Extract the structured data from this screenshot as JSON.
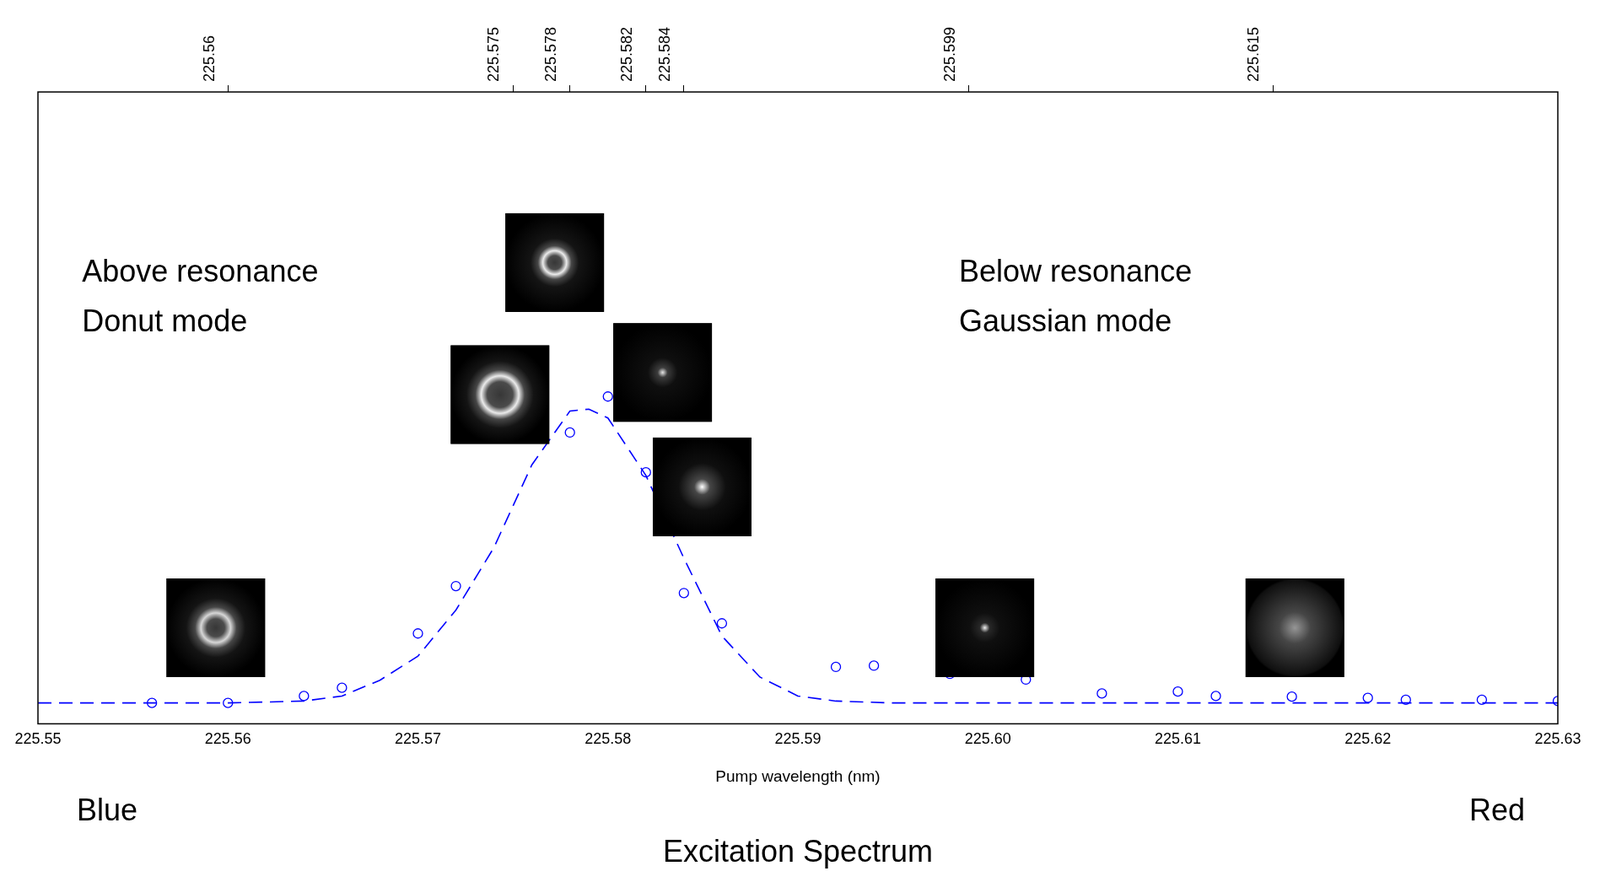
{
  "chart_data": {
    "type": "scatter",
    "title": "Excitation Spectrum",
    "x_label": "Pump wavelength (nm)",
    "annotations": [
      "Above resonance\nDonut mode",
      "Below resonance\nGaussian mode",
      "Blue",
      "Red"
    ],
    "xlim": [
      225.55,
      225.63
    ],
    "xticks": [
      225.55,
      225.56,
      225.57,
      225.58,
      225.59,
      {
        "value": 225.6,
        "label": "225.60"
      },
      225.61,
      225.62,
      225.63
    ],
    "x2lim": [
      225.55,
      225.63
    ],
    "x2ticks": [
      225.56,
      225.575,
      225.578,
      225.582,
      225.584,
      225.599,
      225.615
    ],
    "ylim": [
      0,
      1
    ],
    "tick_labels": "x",
    "grid": false,
    "series": [
      {
        "type": "scatter",
        "marker": "circle",
        "color": "#0000ff",
        "x": [
          225.556,
          225.56,
          225.564,
          225.566,
          225.57,
          225.572,
          225.578,
          225.58,
          225.582,
          225.584,
          225.586,
          225.592,
          225.594,
          225.598,
          225.602,
          225.606,
          225.61,
          225.612,
          225.616,
          225.62,
          225.622,
          225.626,
          225.63
        ],
        "values": [
          0.033,
          0.033,
          0.044,
          0.057,
          0.143,
          0.218,
          0.461,
          0.518,
          0.398,
          0.207,
          0.159,
          0.09,
          0.092,
          0.079,
          0.07,
          0.048,
          0.051,
          0.044,
          0.043,
          0.041,
          0.038,
          0.038,
          0.036
        ]
      },
      {
        "type": "line",
        "line_style": "dashed",
        "color": "#0000ff",
        "x": [
          225.55,
          225.56,
          225.564,
          225.566,
          225.568,
          225.57,
          225.572,
          225.574,
          225.576,
          225.578,
          225.579,
          225.58,
          225.582,
          225.584,
          225.586,
          225.588,
          225.59,
          225.592,
          225.595,
          225.63
        ],
        "values": [
          0.033,
          0.033,
          0.036,
          0.044,
          0.069,
          0.107,
          0.18,
          0.279,
          0.41,
          0.495,
          0.498,
          0.484,
          0.393,
          0.262,
          0.139,
          0.074,
          0.044,
          0.036,
          0.033,
          0.033
        ]
      }
    ]
  }
}
